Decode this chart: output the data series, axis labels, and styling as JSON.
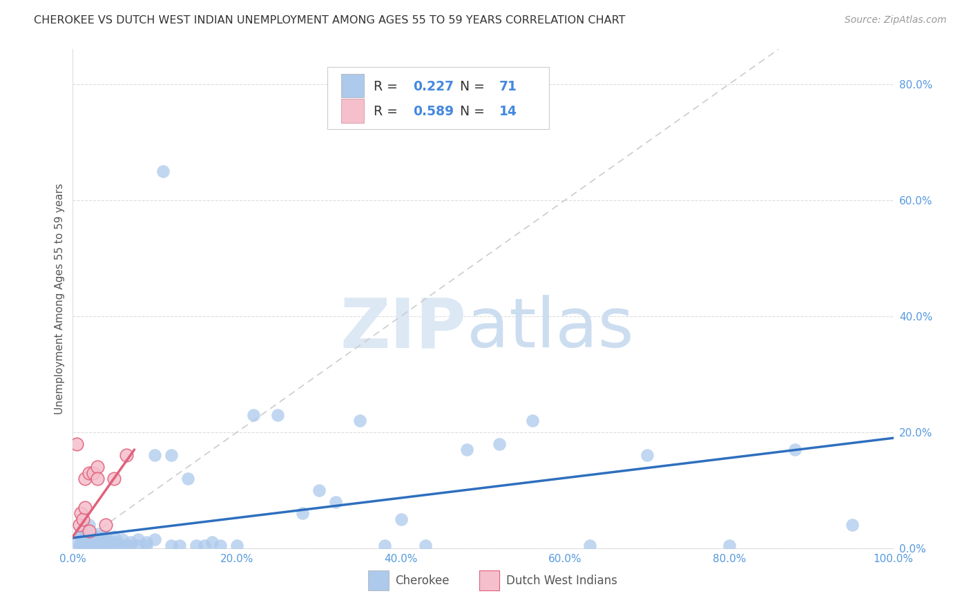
{
  "title": "CHEROKEE VS DUTCH WEST INDIAN UNEMPLOYMENT AMONG AGES 55 TO 59 YEARS CORRELATION CHART",
  "source": "Source: ZipAtlas.com",
  "ylabel": "Unemployment Among Ages 55 to 59 years",
  "ytick_labels": [
    "0.0%",
    "20.0%",
    "40.0%",
    "60.0%",
    "80.0%"
  ],
  "ytick_values": [
    0.0,
    0.2,
    0.4,
    0.6,
    0.8
  ],
  "xtick_labels": [
    "0.0%",
    "20.0%",
    "40.0%",
    "60.0%",
    "80.0%",
    "100.0%"
  ],
  "xtick_values": [
    0.0,
    0.2,
    0.4,
    0.6,
    0.8,
    1.0
  ],
  "xlim": [
    0,
    1.0
  ],
  "ylim": [
    0,
    0.86
  ],
  "cherokee_R": 0.227,
  "cherokee_N": 71,
  "dutch_R": 0.589,
  "dutch_N": 14,
  "cherokee_color": "#adc9ec",
  "cherokee_edge_color": "#adc9ec",
  "cherokee_line_color": "#2e6fbe",
  "dutch_color": "#f5bfcc",
  "dutch_edge_color": "#e0607a",
  "dutch_line_color": "#e0607a",
  "diagonal_color": "#cccccc",
  "background_color": "#ffffff",
  "title_color": "#333333",
  "source_color": "#999999",
  "tick_color": "#5599dd",
  "ylabel_color": "#555555",
  "legend_label_color": "#333333",
  "legend_val_color": "#4488dd",
  "cherokee_x": [
    0.005,
    0.008,
    0.01,
    0.01,
    0.01,
    0.012,
    0.015,
    0.015,
    0.016,
    0.018,
    0.02,
    0.02,
    0.02,
    0.02,
    0.022,
    0.025,
    0.025,
    0.025,
    0.028,
    0.03,
    0.03,
    0.03,
    0.03,
    0.035,
    0.035,
    0.04,
    0.04,
    0.04,
    0.045,
    0.05,
    0.05,
    0.05,
    0.055,
    0.06,
    0.06,
    0.065,
    0.07,
    0.07,
    0.08,
    0.08,
    0.09,
    0.09,
    0.1,
    0.1,
    0.11,
    0.12,
    0.12,
    0.13,
    0.14,
    0.15,
    0.16,
    0.17,
    0.18,
    0.2,
    0.22,
    0.25,
    0.28,
    0.3,
    0.32,
    0.35,
    0.38,
    0.4,
    0.43,
    0.48,
    0.52,
    0.56,
    0.63,
    0.7,
    0.8,
    0.88,
    0.95
  ],
  "cherokee_y": [
    0.01,
    0.005,
    0.01,
    0.02,
    0.03,
    0.005,
    0.005,
    0.02,
    0.01,
    0.01,
    0.005,
    0.01,
    0.02,
    0.04,
    0.005,
    0.005,
    0.01,
    0.02,
    0.01,
    0.005,
    0.01,
    0.015,
    0.025,
    0.005,
    0.02,
    0.005,
    0.01,
    0.02,
    0.01,
    0.005,
    0.01,
    0.02,
    0.01,
    0.005,
    0.015,
    0.005,
    0.005,
    0.01,
    0.005,
    0.015,
    0.005,
    0.01,
    0.015,
    0.16,
    0.65,
    0.005,
    0.16,
    0.005,
    0.12,
    0.005,
    0.005,
    0.01,
    0.005,
    0.005,
    0.23,
    0.23,
    0.06,
    0.1,
    0.08,
    0.22,
    0.005,
    0.05,
    0.005,
    0.17,
    0.18,
    0.22,
    0.005,
    0.16,
    0.005,
    0.17,
    0.04
  ],
  "dutch_x": [
    0.005,
    0.008,
    0.01,
    0.012,
    0.015,
    0.015,
    0.02,
    0.02,
    0.025,
    0.03,
    0.03,
    0.04,
    0.05,
    0.065
  ],
  "dutch_y": [
    0.18,
    0.04,
    0.06,
    0.05,
    0.07,
    0.12,
    0.03,
    0.13,
    0.13,
    0.14,
    0.12,
    0.04,
    0.12,
    0.16
  ],
  "cherokee_trend_x": [
    0.0,
    1.0
  ],
  "cherokee_trend_y": [
    0.018,
    0.19
  ],
  "dutch_trend_x": [
    0.0,
    0.075
  ],
  "dutch_trend_y": [
    0.02,
    0.17
  ]
}
